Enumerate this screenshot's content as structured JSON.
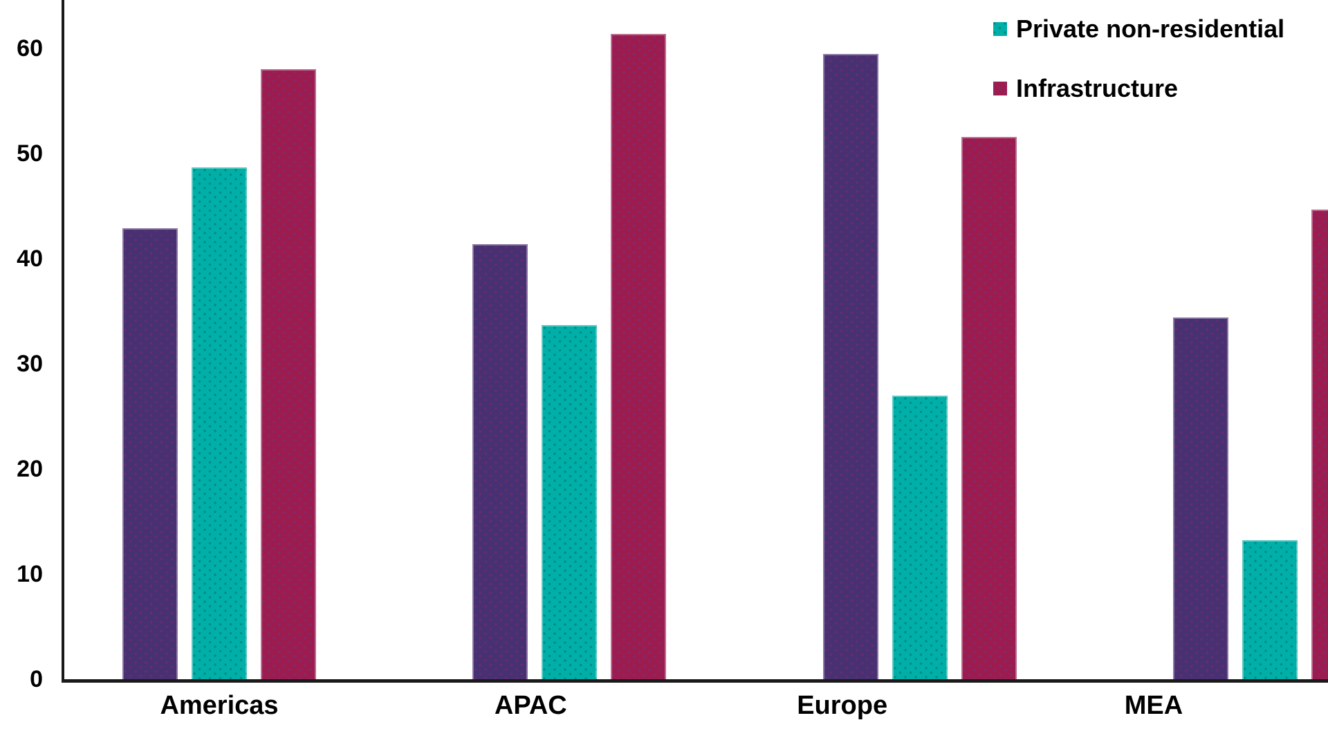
{
  "chart_data": {
    "type": "bar",
    "title": "",
    "xlabel": "",
    "ylabel": "",
    "categories": [
      "Americas",
      "APAC",
      "Europe",
      "MEA"
    ],
    "series": [
      {
        "legend_label": null,
        "color": "#473173",
        "dot_color": "rgba(148,37,94,0.5)",
        "values": [
          42.9,
          41.4,
          59.5,
          34.4
        ]
      },
      {
        "legend_label": "Private non-residential",
        "color": "#00AFA7",
        "dot_color": "rgba(0,95,90,0.45)",
        "values": [
          48.7,
          33.7,
          27.0,
          13.2
        ]
      },
      {
        "legend_label": "Infrastructure",
        "color": "#9D1C4F",
        "dot_color": "rgba(90,62,143,0.5)",
        "values": [
          58.0,
          61.4,
          51.6,
          44.7
        ]
      }
    ],
    "yticks": [
      0,
      10,
      20,
      30,
      40,
      50,
      60
    ],
    "ylim": [
      0,
      64.6
    ],
    "grid": false,
    "legend_position": "top-right"
  },
  "legend": {
    "items": [
      {
        "label": "Private non-residential",
        "color": "#00AFA7",
        "dot_color": "rgba(0,95,90,0.45)"
      },
      {
        "label": "Infrastructure",
        "color": "#9D1C4F",
        "dot_color": "rgba(90,62,143,0.5)"
      }
    ]
  },
  "axis": {
    "line_color": "#1a1a1a",
    "text_color": "#000000"
  }
}
